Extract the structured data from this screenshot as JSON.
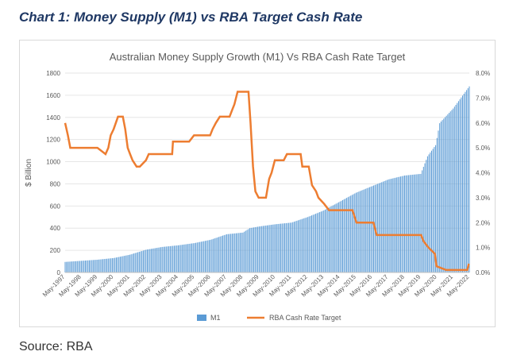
{
  "heading": "Chart 1: Money Supply (M1) vs RBA Target Cash Rate",
  "source": "Source: RBA",
  "colors": {
    "m1": "#5b9bd5",
    "cash": "#ed7d31",
    "heading": "#1f3864"
  },
  "chart_data": {
    "type": "bar",
    "title": "Australian Money Supply Growth (M1) Vs RBA Cash Rate Target",
    "ylabel": "$ Billion",
    "ylim": [
      0,
      1800
    ],
    "y_ticks": [
      "0",
      "200",
      "400",
      "600",
      "800",
      "1000",
      "1200",
      "1400",
      "1600",
      "1800"
    ],
    "y2lim": [
      0,
      8
    ],
    "y2_ticks": [
      "0.0%",
      "1.0%",
      "2.0%",
      "3.0%",
      "4.0%",
      "5.0%",
      "6.0%",
      "7.0%",
      "8.0%"
    ],
    "x_ticks": [
      "May-1997",
      "May-1998",
      "May-1999",
      "May-2000",
      "May-2001",
      "May-2002",
      "May-2003",
      "May-2004",
      "May-2005",
      "May-2006",
      "May-2007",
      "May-2008",
      "May-2009",
      "May-2010",
      "May-2011",
      "May-2012",
      "May-2013",
      "May-2014",
      "May-2015",
      "May-2016",
      "May-2017",
      "May-2018",
      "May-2019",
      "May-2020",
      "May-2021",
      "May-2022"
    ],
    "legend_position": "bottom",
    "series": [
      {
        "name": "M1",
        "type": "bar",
        "axis": "left",
        "x": [
          1997.33,
          1998.33,
          1999.33,
          2000.33,
          2001.33,
          2002.33,
          2003.33,
          2004.33,
          2005.33,
          2006.33,
          2007.33,
          2008.33,
          2008.75,
          2009.33,
          2010.33,
          2011.33,
          2012.33,
          2013.33,
          2014.33,
          2015.33,
          2016.33,
          2017.33,
          2018.33,
          2019.33,
          2019.75,
          2020.25,
          2020.5,
          2021.33,
          2022.33
        ],
        "values": [
          95,
          105,
          115,
          130,
          160,
          205,
          230,
          245,
          265,
          295,
          345,
          360,
          400,
          415,
          435,
          450,
          500,
          560,
          640,
          720,
          780,
          840,
          875,
          890,
          1050,
          1150,
          1350,
          1480,
          1680
        ]
      },
      {
        "name": "RBA Cash Rate Target",
        "type": "line",
        "axis": "right",
        "x": [
          1997.33,
          1997.5,
          1997.65,
          1999.33,
          1999.83,
          2000.0,
          2000.15,
          2000.33,
          2000.6,
          2000.9,
          2001.05,
          2001.2,
          2001.35,
          2001.5,
          2001.75,
          2001.95,
          2002.33,
          2002.5,
          2003.95,
          2004.0,
          2005.0,
          2005.3,
          2006.3,
          2006.45,
          2006.65,
          2006.9,
          2007.5,
          2007.65,
          2007.8,
          2008.0,
          2008.67,
          2008.8,
          2008.95,
          2009.1,
          2009.3,
          2009.75,
          2009.95,
          2010.1,
          2010.3,
          2010.85,
          2011.05,
          2011.9,
          2012.0,
          2012.4,
          2012.6,
          2012.85,
          2013.0,
          2013.35,
          2013.65,
          2014.0,
          2015.1,
          2015.35,
          2016.4,
          2016.6,
          2019.35,
          2019.5,
          2019.8,
          2020.2,
          2020.3,
          2020.9,
          2022.2,
          2022.3
        ],
        "values": [
          6.0,
          5.5,
          5.0,
          5.0,
          4.75,
          5.0,
          5.5,
          5.75,
          6.25,
          6.25,
          5.75,
          5.0,
          4.75,
          4.5,
          4.25,
          4.25,
          4.5,
          4.75,
          4.75,
          5.25,
          5.25,
          5.5,
          5.5,
          5.75,
          6.0,
          6.25,
          6.25,
          6.5,
          6.75,
          7.25,
          7.25,
          6.0,
          4.25,
          3.25,
          3.0,
          3.0,
          3.75,
          4.0,
          4.5,
          4.5,
          4.75,
          4.75,
          4.25,
          4.25,
          3.5,
          3.25,
          3.0,
          2.75,
          2.5,
          2.5,
          2.5,
          2.0,
          2.0,
          1.5,
          1.5,
          1.25,
          1.0,
          0.75,
          0.25,
          0.1,
          0.1,
          0.35
        ]
      }
    ]
  }
}
